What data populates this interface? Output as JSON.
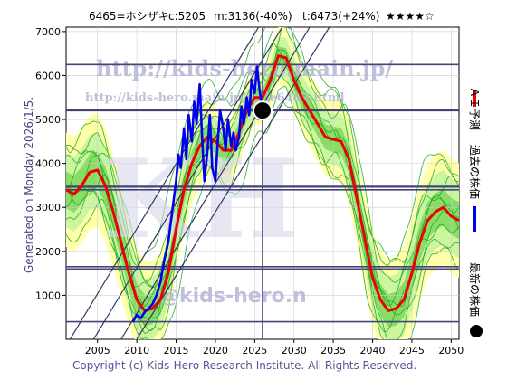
{
  "header": {
    "code_label": "6465=ホシザキ",
    "current_label": "c:5205",
    "min_label": "m:3136(-40%)",
    "target_label": "t:6473(+24%)",
    "rating": "★★★★☆"
  },
  "side_note": "Generated on Monday 2026/1/5.",
  "footer": "Copyright (c) Kids-Hero Research Institute. All Rights Reserved.",
  "watermark": {
    "url_main": "http://kids-hero.main.jp/",
    "url_code": "http://kids-hero.main.jp/code6465.html",
    "big_text": "KH",
    "email": "@kids-hero.n"
  },
  "legend": {
    "ai_forecast": "ＡＩ予測",
    "past_price": "過去の株価",
    "latest_price": "最新の株価"
  },
  "colors": {
    "ai_forecast": "#ee0000",
    "past_price": "#0000ee",
    "latest_price": "#000000",
    "band_outer": "#ffffaa",
    "band_mid": "#ccf5a0",
    "band_inner": "#88dd66",
    "sim_lines": "#22aa22",
    "trend_lines": "#333366",
    "level_lines": "#444477"
  },
  "chart_data": {
    "type": "line",
    "title": "6465=ホシザキ",
    "xlim": [
      2001,
      2051
    ],
    "ylim": [
      0,
      7100
    ],
    "x_ticks": [
      2005,
      2010,
      2015,
      2020,
      2025,
      2030,
      2035,
      2040,
      2045,
      2050
    ],
    "y_ticks": [
      1000,
      2000,
      3000,
      4000,
      5000,
      6000,
      7000
    ],
    "grid": true,
    "current": {
      "label": "c:5205",
      "x": 2026.0,
      "y": 5205
    },
    "minimum": {
      "label": "m:3136(-40%)",
      "value": 3136
    },
    "target": {
      "label": "t:6473(+24%)",
      "value": 6473
    },
    "horizontal_levels": [
      6250,
      5205,
      3470,
      3400,
      1650,
      1600,
      400
    ],
    "vertical_marker_x": 2026.0,
    "trend_lines": [
      {
        "x": [
          2008.0,
          2032.0
        ],
        "y": [
          0,
          7100
        ]
      },
      {
        "x": [
          2004.5,
          2028.5
        ],
        "y": [
          0,
          7100
        ]
      },
      {
        "x": [
          2001.5,
          2025.5
        ],
        "y": [
          0,
          7100
        ]
      },
      {
        "x": [
          2010.0,
          2034.5
        ],
        "y": [
          0,
          7100
        ]
      }
    ],
    "series": [
      {
        "name": "過去の株価",
        "x": [
          2009.5,
          2010.0,
          2010.5,
          2011.0,
          2011.5,
          2012.0,
          2012.5,
          2013.0,
          2013.5,
          2014.0,
          2014.5,
          2015.0,
          2015.3,
          2015.6,
          2016.0,
          2016.3,
          2016.6,
          2017.0,
          2017.3,
          2017.6,
          2018.0,
          2018.3,
          2018.6,
          2019.0,
          2019.3,
          2019.6,
          2020.0,
          2020.3,
          2020.6,
          2021.0,
          2021.3,
          2021.6,
          2022.0,
          2022.3,
          2022.6,
          2023.0,
          2023.3,
          2023.6,
          2024.0,
          2024.3,
          2024.6,
          2025.0,
          2025.3,
          2025.6,
          2026.0
        ],
        "y": [
          400,
          550,
          480,
          620,
          700,
          800,
          1000,
          1300,
          1800,
          2200,
          2900,
          3600,
          4200,
          3900,
          4800,
          4100,
          5100,
          4500,
          5400,
          4900,
          5800,
          4600,
          3600,
          4300,
          5100,
          3900,
          3600,
          4500,
          5200,
          4800,
          4300,
          5000,
          4400,
          4700,
          4300,
          4600,
          5300,
          4900,
          5500,
          5100,
          5900,
          5600,
          6200,
          5700,
          5205
        ]
      },
      {
        "name": "ＡＩ予測",
        "x": [
          2001,
          2002,
          2003,
          2004,
          2005,
          2006,
          2007,
          2008,
          2009,
          2010,
          2011,
          2012,
          2013,
          2014,
          2015,
          2016,
          2017,
          2018,
          2019,
          2020,
          2021,
          2022,
          2023,
          2024,
          2025,
          2026,
          2027,
          2028,
          2029,
          2030,
          2031,
          2032,
          2033,
          2034,
          2035,
          2036,
          2037,
          2038,
          2039,
          2040,
          2041,
          2042,
          2043,
          2044,
          2045,
          2046,
          2047,
          2048,
          2049,
          2050,
          2051
        ],
        "y": [
          3400,
          3300,
          3500,
          3800,
          3850,
          3500,
          2900,
          2200,
          1500,
          900,
          650,
          700,
          900,
          1500,
          2500,
          3400,
          4000,
          4400,
          4600,
          4500,
          4300,
          4300,
          4700,
          5200,
          5500,
          5500,
          5900,
          6450,
          6400,
          5900,
          5500,
          5200,
          4900,
          4600,
          4550,
          4500,
          4100,
          3200,
          2300,
          1400,
          900,
          650,
          700,
          900,
          1500,
          2200,
          2700,
          2900,
          3000,
          2800,
          2700
        ]
      }
    ]
  }
}
